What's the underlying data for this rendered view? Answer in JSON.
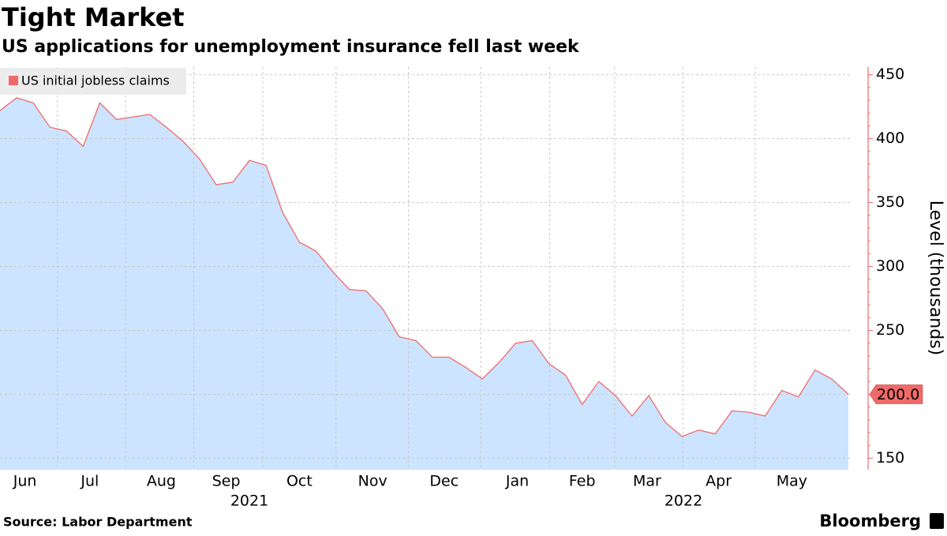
{
  "chart_data": {
    "type": "area",
    "title": "Tight Market",
    "subtitle": "US applications for unemployment insurance fell last week",
    "source": "Source: Labor Department",
    "brand": "Bloomberg",
    "y_axis_label": "Level (thousands)",
    "year_labels": [
      "2021",
      "2022"
    ],
    "series": [
      {
        "name": "US initial jobless claims",
        "color": "#f06a6a",
        "fill": "#cce4ff",
        "values": [
          422,
          432,
          428,
          409,
          406,
          394,
          428,
          415,
          417,
          419,
          409,
          398,
          384,
          364,
          366,
          383,
          379,
          342,
          319,
          312,
          296,
          282,
          281,
          267,
          245,
          242,
          229,
          229,
          221,
          212,
          225,
          240,
          242,
          224,
          215,
          192,
          210,
          199,
          183,
          199,
          178,
          167,
          172,
          169,
          187,
          186,
          183,
          203,
          198,
          219,
          212,
          200
        ],
        "value_labels": [
          null,
          null,
          null,
          null,
          null,
          null,
          null,
          null,
          null,
          null,
          null,
          null,
          null,
          null,
          null,
          null,
          null,
          null,
          null,
          null,
          null,
          null,
          null,
          null,
          null,
          null,
          null,
          null,
          null,
          null,
          null,
          null,
          null,
          null,
          null,
          null,
          null,
          null,
          null,
          null,
          null,
          null,
          null,
          null,
          null,
          null,
          null,
          null,
          null,
          null,
          null,
          "200.0"
        ]
      }
    ],
    "xlim": [
      0,
      51
    ],
    "xticks": [
      {
        "value": 1.5,
        "label": "Jun"
      },
      {
        "value": 5.4,
        "label": "Jul"
      },
      {
        "value": 9.7,
        "label": "Aug"
      },
      {
        "value": 13.6,
        "label": "Sep"
      },
      {
        "value": 18,
        "label": "Oct"
      },
      {
        "value": 22.4,
        "label": "Nov"
      },
      {
        "value": 26.7,
        "label": "Dec"
      },
      {
        "value": 31.1,
        "label": "Jan"
      },
      {
        "value": 35,
        "label": "Feb"
      },
      {
        "value": 38.9,
        "label": "Mar"
      },
      {
        "value": 43.2,
        "label": "Apr"
      },
      {
        "value": 47.6,
        "label": "May"
      }
    ],
    "ylim": [
      141,
      456
    ],
    "yticks": [
      150,
      200,
      250,
      300,
      350,
      400,
      450
    ],
    "grid": true
  }
}
